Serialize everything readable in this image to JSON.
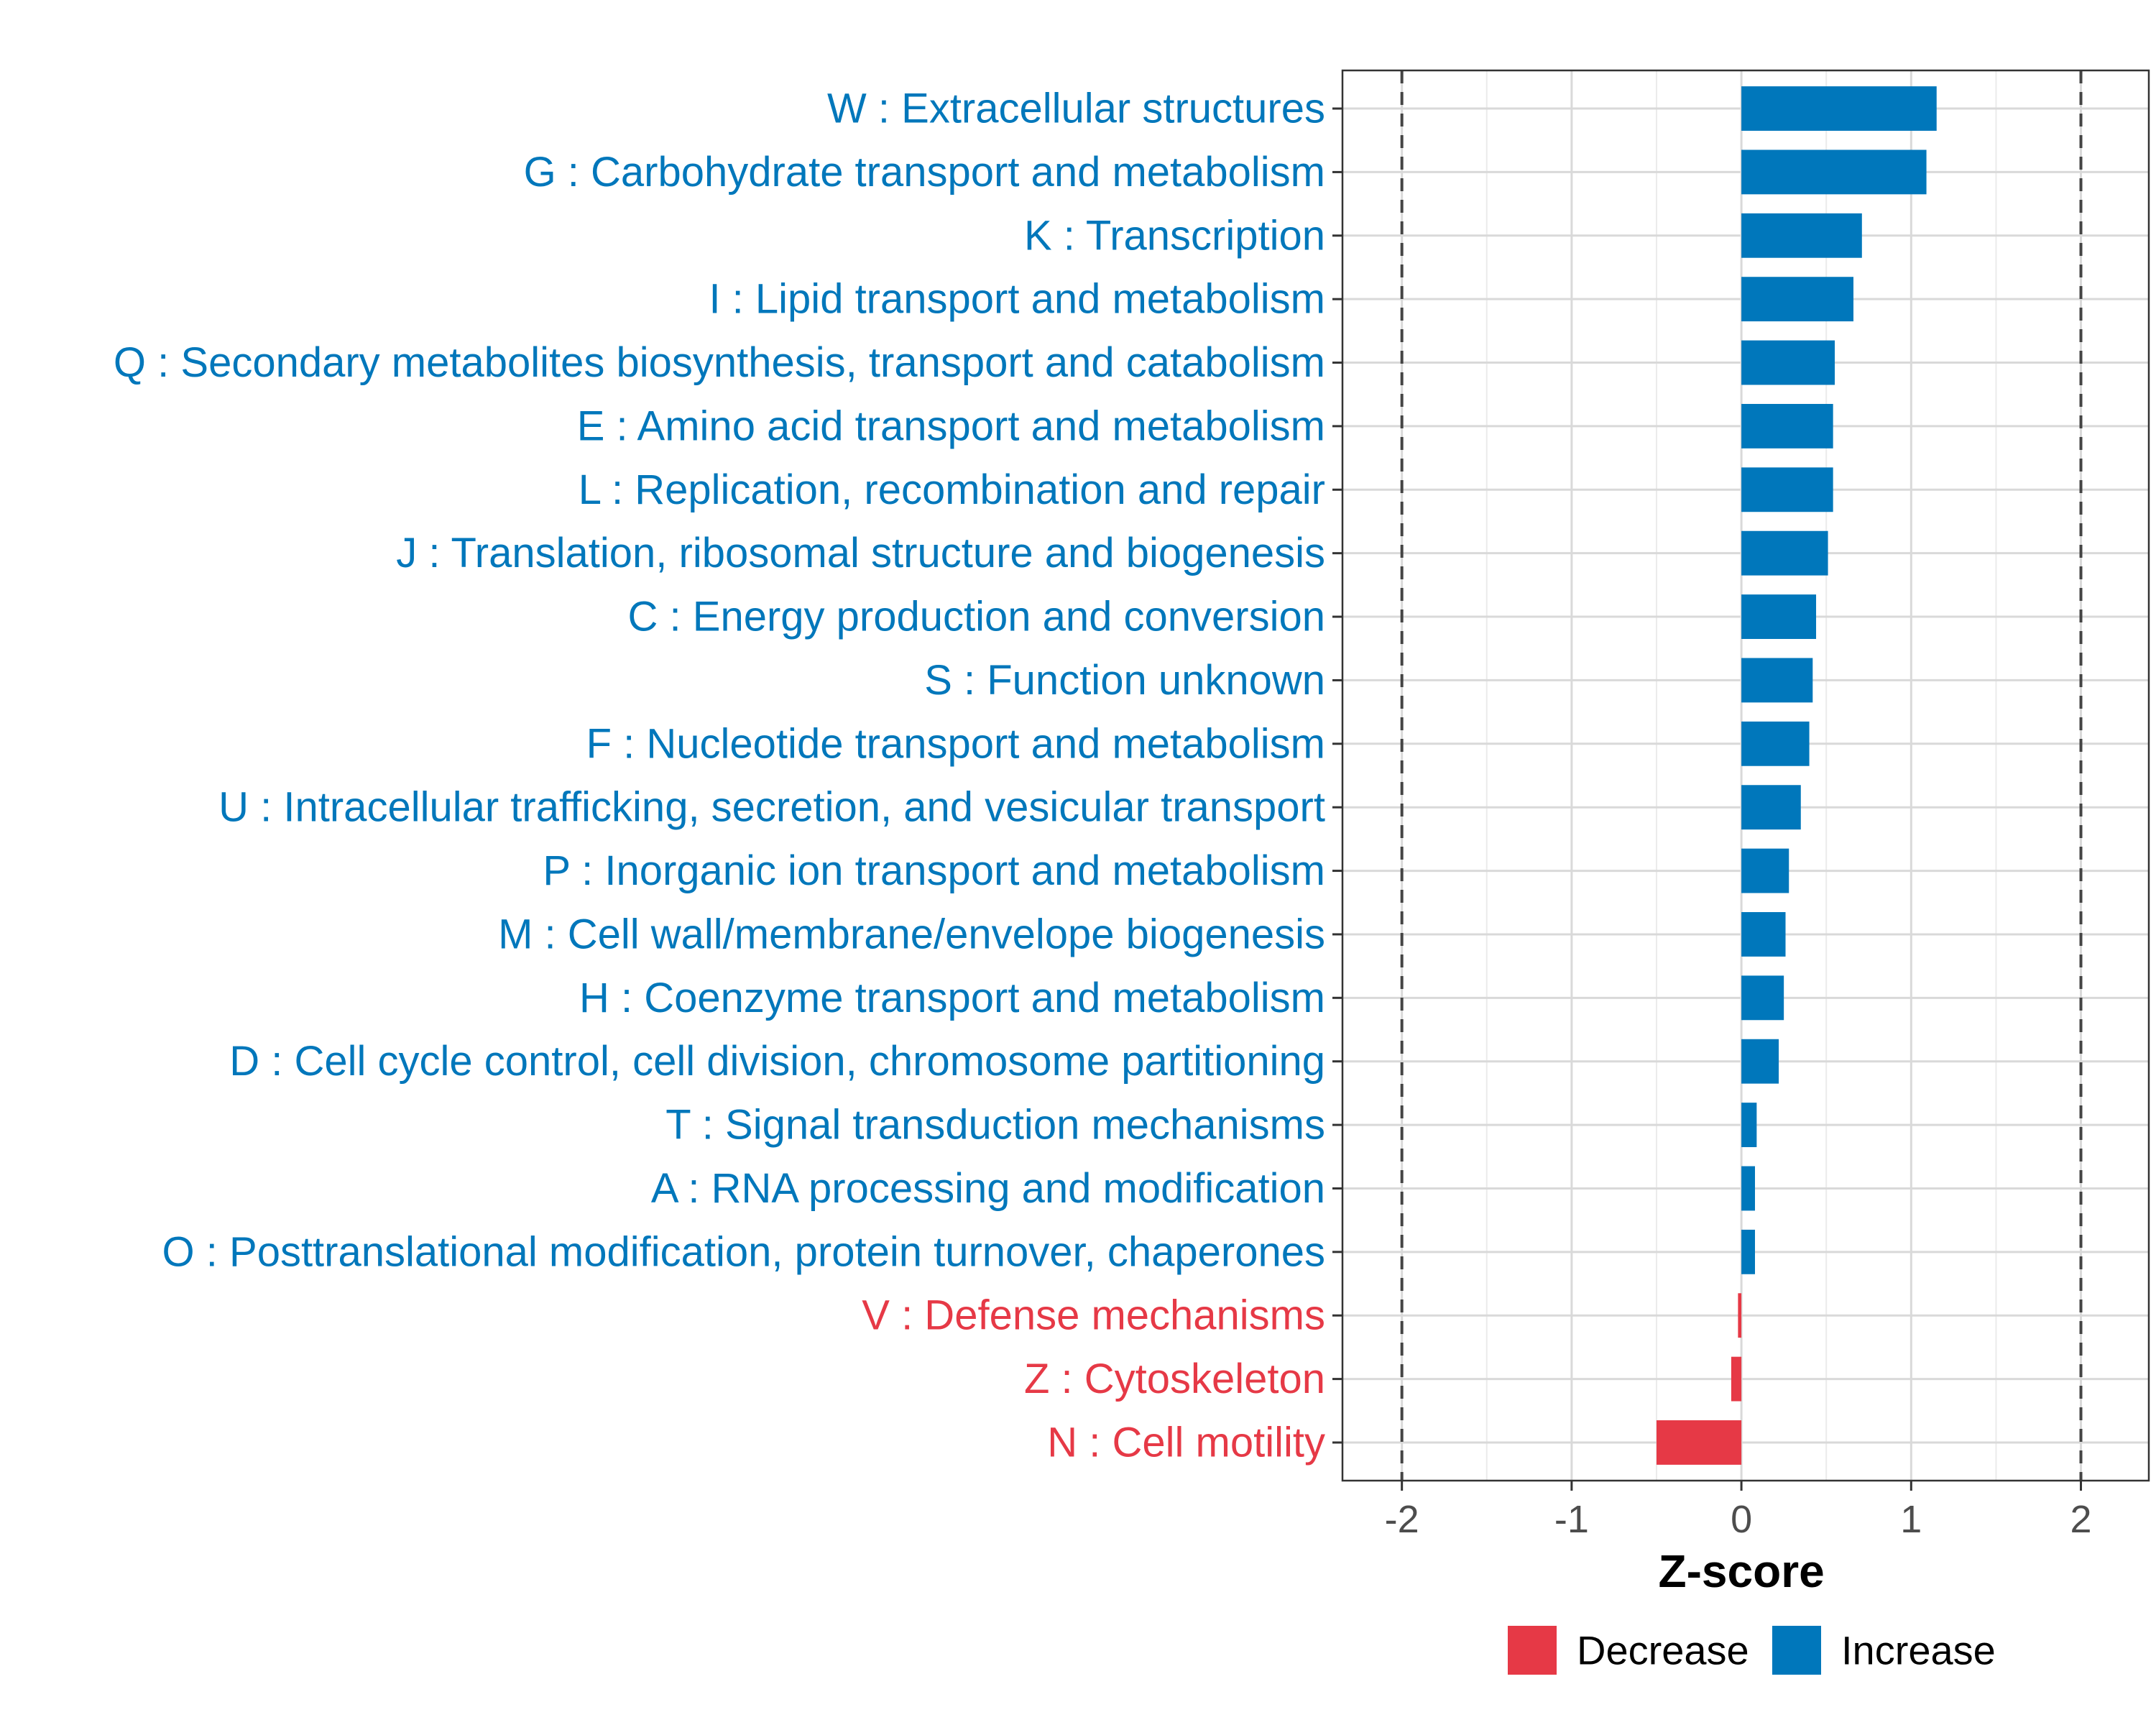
{
  "colors": {
    "increase": "#0077BB",
    "decrease": "#E63946"
  },
  "chart_data": {
    "type": "bar",
    "orientation": "horizontal",
    "xlabel": "Z-score",
    "ylabel": "",
    "xlim": [
      -2.35,
      2.4
    ],
    "xticks": [
      -2,
      -1,
      0,
      1,
      2
    ],
    "xtick_labels": [
      "-2",
      "-1",
      "0",
      "1",
      "2"
    ],
    "reference_lines": [
      -2,
      2
    ],
    "grid": true,
    "categories": [
      "W : Extracellular structures",
      "G : Carbohydrate transport and metabolism",
      "K : Transcription",
      "I : Lipid transport and metabolism",
      "Q : Secondary metabolites biosynthesis, transport and catabolism",
      "E : Amino acid transport and metabolism",
      "L : Replication, recombination and repair",
      "J : Translation, ribosomal structure and biogenesis",
      "C : Energy production and conversion",
      "S : Function unknown",
      "F : Nucleotide transport and metabolism",
      "U : Intracellular trafficking, secretion, and vesicular transport",
      "P : Inorganic ion transport and metabolism",
      "M : Cell wall/membrane/envelope biogenesis",
      "H : Coenzyme transport and metabolism",
      "D : Cell cycle control, cell division, chromosome partitioning",
      "T : Signal transduction mechanisms",
      "A : RNA processing and modification",
      "O : Posttranslational modification, protein turnover, chaperones",
      "V : Defense mechanisms",
      "Z : Cytoskeleton",
      "N : Cell motility"
    ],
    "values": [
      1.15,
      1.09,
      0.71,
      0.66,
      0.55,
      0.54,
      0.54,
      0.51,
      0.44,
      0.42,
      0.4,
      0.35,
      0.28,
      0.26,
      0.25,
      0.22,
      0.09,
      0.08,
      0.08,
      -0.02,
      -0.06,
      -0.5
    ],
    "groups": [
      "Increase",
      "Increase",
      "Increase",
      "Increase",
      "Increase",
      "Increase",
      "Increase",
      "Increase",
      "Increase",
      "Increase",
      "Increase",
      "Increase",
      "Increase",
      "Increase",
      "Increase",
      "Increase",
      "Increase",
      "Increase",
      "Increase",
      "Decrease",
      "Decrease",
      "Decrease"
    ],
    "legend": {
      "position": "bottom",
      "entries": [
        {
          "label": "Decrease",
          "color": "#E63946"
        },
        {
          "label": "Increase",
          "color": "#0077BB"
        }
      ]
    }
  }
}
